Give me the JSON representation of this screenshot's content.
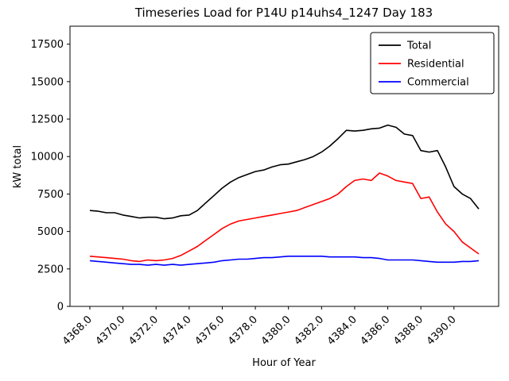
{
  "chart_data": {
    "type": "line",
    "title": "Timeseries Load for P14U p14uhs4_1247  Day 183",
    "xlabel": "Hour of Year",
    "ylabel": "kW total",
    "xlim": [
      4366.8,
      4392.7
    ],
    "ylim": [
      0,
      18700
    ],
    "grid": false,
    "legend_position": "upper right",
    "x_start": 4368.0,
    "x_step": 0.5,
    "xticks": [
      4368,
      4370,
      4372,
      4374,
      4376,
      4378,
      4380,
      4382,
      4384,
      4386,
      4388,
      4390
    ],
    "xtick_labels": [
      "4368.0",
      "4370.0",
      "4372.0",
      "4374.0",
      "4376.0",
      "4378.0",
      "4380.0",
      "4382.0",
      "4384.0",
      "4386.0",
      "4388.0",
      "4390.0"
    ],
    "yticks": [
      0,
      2500,
      5000,
      7500,
      10000,
      12500,
      15000,
      17500
    ],
    "series": [
      {
        "name": "Total",
        "color": "#000000",
        "values": [
          6400,
          6350,
          6250,
          6250,
          6100,
          6000,
          5900,
          5950,
          5950,
          5850,
          5900,
          6050,
          6100,
          6400,
          6900,
          7400,
          7900,
          8300,
          8600,
          8800,
          9000,
          9100,
          9300,
          9450,
          9500,
          9650,
          9800,
          10000,
          10300,
          10700,
          11200,
          11750,
          11700,
          11750,
          11850,
          11900,
          12100,
          11950,
          11500,
          11400,
          10400,
          10300,
          10400,
          9300,
          8000,
          7500,
          7200,
          6500
        ]
      },
      {
        "name": "Residential",
        "color": "#ff0000",
        "values": [
          3350,
          3300,
          3250,
          3200,
          3150,
          3050,
          3000,
          3100,
          3050,
          3100,
          3200,
          3400,
          3700,
          4000,
          4400,
          4800,
          5200,
          5500,
          5700,
          5800,
          5900,
          6000,
          6100,
          6200,
          6300,
          6400,
          6600,
          6800,
          7000,
          7200,
          7500,
          8000,
          8400,
          8500,
          8400,
          8900,
          8700,
          8400,
          8300,
          8200,
          7200,
          7300,
          6300,
          5500,
          5000,
          4300,
          3900,
          3500
        ]
      },
      {
        "name": "Commercial",
        "color": "#0000ff",
        "values": [
          3050,
          3000,
          2950,
          2900,
          2850,
          2800,
          2800,
          2750,
          2800,
          2750,
          2800,
          2750,
          2800,
          2850,
          2900,
          2950,
          3050,
          3100,
          3150,
          3150,
          3200,
          3250,
          3250,
          3300,
          3350,
          3350,
          3350,
          3350,
          3350,
          3300,
          3300,
          3300,
          3300,
          3250,
          3250,
          3200,
          3100,
          3100,
          3100,
          3100,
          3050,
          3000,
          2950,
          2950,
          2950,
          3000,
          3000,
          3050
        ]
      }
    ]
  }
}
